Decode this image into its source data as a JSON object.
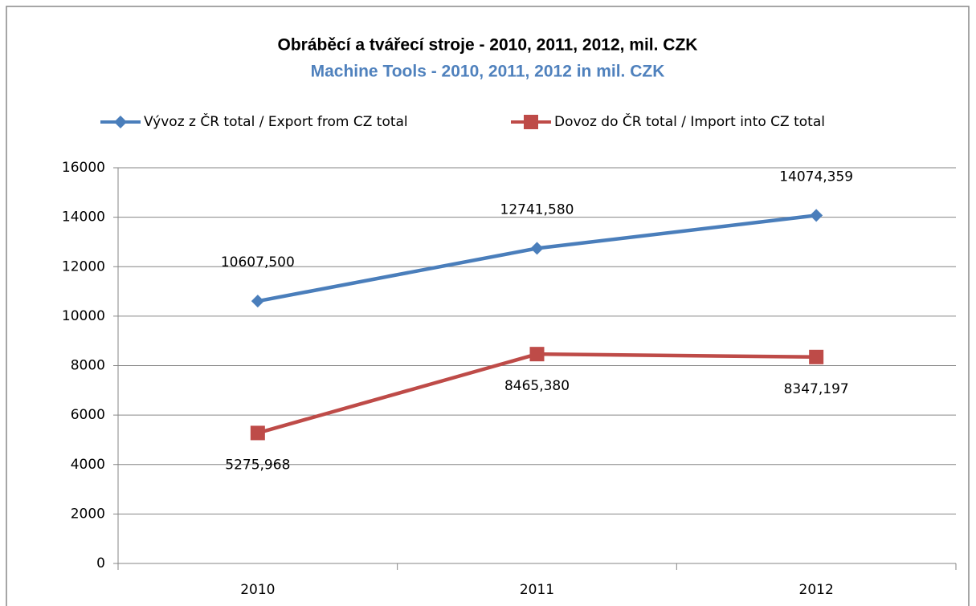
{
  "chart_data": {
    "type": "line",
    "title": "Obráběcí a tvářecí stroje - 2010, 2011, 2012, mil. CZK",
    "subtitle": "Machine Tools - 2010, 2011, 2012 in mil. CZK",
    "categories": [
      "2010",
      "2011",
      "2012"
    ],
    "series": [
      {
        "name": "Vývoz z ČR total / Export from CZ total",
        "color": "#4a7ebb",
        "marker": "diamond",
        "label_position": "above",
        "values": [
          10607.5,
          12741.58,
          14074.359
        ],
        "value_labels": [
          "10607,500",
          "12741,580",
          "14074,359"
        ]
      },
      {
        "name": "Dovoz do ČR total / Import into CZ total",
        "color": "#be4b48",
        "marker": "square",
        "label_position": "below",
        "values": [
          5275.968,
          8465.38,
          8347.197
        ],
        "value_labels": [
          "5275,968",
          "8465,380",
          "8347,197"
        ]
      }
    ],
    "ylim": [
      0,
      16000
    ],
    "yticks": [
      0,
      2000,
      4000,
      6000,
      8000,
      10000,
      12000,
      14000,
      16000
    ],
    "grid": true,
    "legend": "top"
  }
}
